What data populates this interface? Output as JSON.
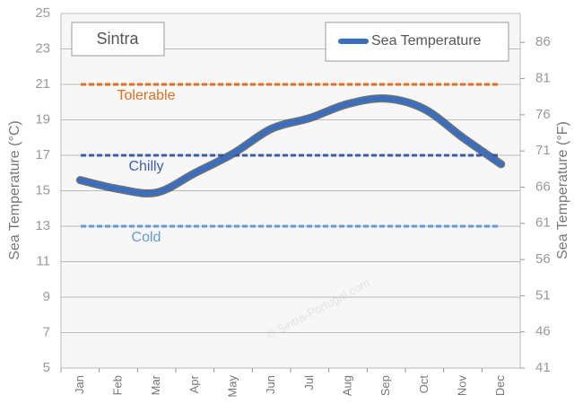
{
  "chart_data": {
    "type": "line",
    "title": "Sintra",
    "watermark": "© Sintra-Portugal.com",
    "y_label": "Sea Temperature (°C)",
    "y2_label": "Sea Temperature (°F)",
    "categories": [
      "Jan",
      "Feb",
      "Mar",
      "Apr",
      "May",
      "Jun",
      "Jul",
      "Aug",
      "Sep",
      "Oct",
      "Nov",
      "Dec"
    ],
    "series": [
      {
        "name": "Sea Temperature",
        "color": "#3a6fc0",
        "values": [
          15.6,
          15.1,
          14.9,
          16.0,
          17.1,
          18.5,
          19.1,
          19.9,
          20.2,
          19.6,
          18.0,
          16.5
        ]
      }
    ],
    "reference_lines": [
      {
        "label": "Tolerable",
        "value": 21,
        "color": "#e07020"
      },
      {
        "label": "Chilly",
        "value": 17,
        "color": "#3a5fa8"
      },
      {
        "label": "Cold",
        "value": 13,
        "color": "#6699d6"
      }
    ],
    "ylim": [
      5,
      25
    ],
    "yticks": [
      5,
      7,
      9,
      11,
      13,
      15,
      17,
      19,
      21,
      23,
      25
    ],
    "y2lim": [
      41,
      90
    ],
    "y2ticks": [
      41,
      46,
      51,
      56,
      61,
      66,
      71,
      76,
      81,
      86
    ],
    "grid": true
  }
}
